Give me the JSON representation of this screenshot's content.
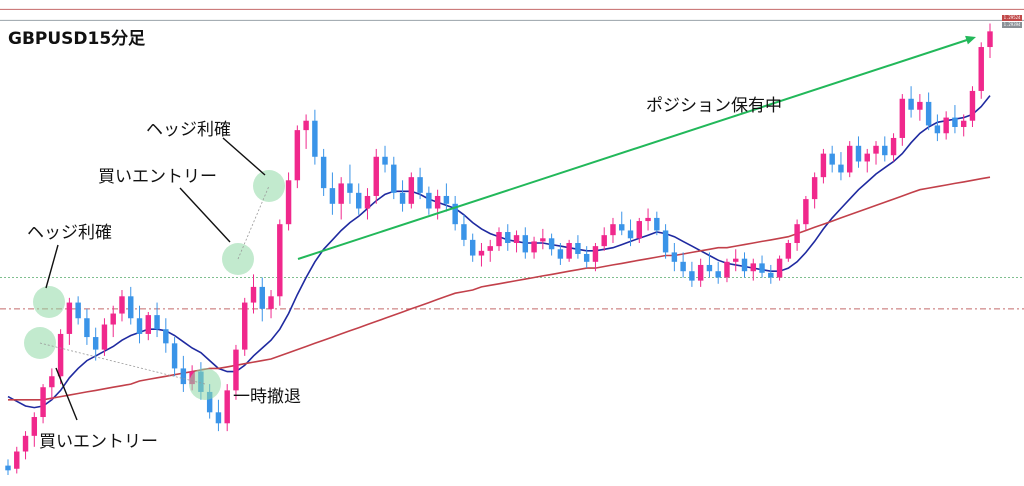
{
  "title": "GBPUSD15分足",
  "annotations": {
    "hedge_profit_1": "ヘッジ利確",
    "buy_entry_1": "買いエントリー",
    "hedge_profit_2": "ヘッジ利確",
    "buy_entry_2": "買いエントリー",
    "temp_retreat": "一時撤退",
    "position_hold": "ポジション保有中"
  },
  "price_tags": {
    "upper": "1.29524",
    "lower": "1.29394"
  },
  "colors": {
    "bull": "#f0288c",
    "bear": "#3a94e8",
    "ma_fast": "#1f2aa0",
    "ma_slow": "#c2404a",
    "trend_arrow": "#22b85a",
    "highlight": "#8fd8a6",
    "hline_green": "#7fbf8f",
    "hline_red": "#c46a6a"
  },
  "chart_data": {
    "type": "candlestick",
    "symbol": "GBPUSD",
    "timeframe": "15分足",
    "candles": [
      [
        1.2748,
        1.2752,
        1.2742,
        1.2745
      ],
      [
        1.2746,
        1.276,
        1.2743,
        1.2757
      ],
      [
        1.2757,
        1.277,
        1.2752,
        1.2767
      ],
      [
        1.2767,
        1.2782,
        1.276,
        1.2779
      ],
      [
        1.2779,
        1.28,
        1.2775,
        1.2798
      ],
      [
        1.2798,
        1.281,
        1.279,
        1.2805
      ],
      [
        1.2805,
        1.2835,
        1.28,
        1.2832
      ],
      [
        1.2832,
        1.2855,
        1.2825,
        1.2852
      ],
      [
        1.2852,
        1.2856,
        1.2838,
        1.2842
      ],
      [
        1.2842,
        1.2848,
        1.2825,
        1.283
      ],
      [
        1.283,
        1.2836,
        1.2815,
        1.2822
      ],
      [
        1.2822,
        1.2842,
        1.2818,
        1.2838
      ],
      [
        1.2838,
        1.285,
        1.283,
        1.2845
      ],
      [
        1.2845,
        1.286,
        1.284,
        1.2856
      ],
      [
        1.2856,
        1.2862,
        1.2838,
        1.2842
      ],
      [
        1.2842,
        1.285,
        1.2826,
        1.2832
      ],
      [
        1.2832,
        1.2846,
        1.2828,
        1.2844
      ],
      [
        1.2844,
        1.2852,
        1.283,
        1.2835
      ],
      [
        1.2835,
        1.2842,
        1.282,
        1.2826
      ],
      [
        1.2826,
        1.283,
        1.2805,
        1.281
      ],
      [
        1.281,
        1.2818,
        1.2795,
        1.28
      ],
      [
        1.28,
        1.2812,
        1.2796,
        1.2808
      ],
      [
        1.2808,
        1.2814,
        1.279,
        1.2795
      ],
      [
        1.2795,
        1.28,
        1.2778,
        1.2782
      ],
      [
        1.2782,
        1.279,
        1.277,
        1.2775
      ],
      [
        1.2775,
        1.28,
        1.277,
        1.2796
      ],
      [
        1.2796,
        1.2825,
        1.279,
        1.2822
      ],
      [
        1.2822,
        1.2855,
        1.2818,
        1.2852
      ],
      [
        1.2852,
        1.287,
        1.2845,
        1.2862
      ],
      [
        1.2862,
        1.2868,
        1.284,
        1.2848
      ],
      [
        1.2848,
        1.286,
        1.2842,
        1.2856
      ],
      [
        1.2856,
        1.2905,
        1.285,
        1.2902
      ],
      [
        1.2902,
        1.2935,
        1.2898,
        1.293
      ],
      [
        1.293,
        1.2965,
        1.2925,
        1.2962
      ],
      [
        1.2962,
        1.2972,
        1.295,
        1.2968
      ],
      [
        1.2968,
        1.2975,
        1.294,
        1.2945
      ],
      [
        1.2945,
        1.295,
        1.292,
        1.2925
      ],
      [
        1.2925,
        1.2935,
        1.2908,
        1.2915
      ],
      [
        1.2915,
        1.2932,
        1.2905,
        1.2928
      ],
      [
        1.2928,
        1.294,
        1.2915,
        1.2922
      ],
      [
        1.2922,
        1.2928,
        1.2908,
        1.2912
      ],
      [
        1.2912,
        1.2925,
        1.2905,
        1.292
      ],
      [
        1.292,
        1.295,
        1.2915,
        1.2945
      ],
      [
        1.2945,
        1.2952,
        1.2935,
        1.294
      ],
      [
        1.294,
        1.2945,
        1.2918,
        1.2922
      ],
      [
        1.2922,
        1.293,
        1.291,
        1.2915
      ],
      [
        1.2915,
        1.2935,
        1.2912,
        1.2932
      ],
      [
        1.2932,
        1.2938,
        1.2918,
        1.2922
      ],
      [
        1.2922,
        1.2926,
        1.2908,
        1.2912
      ],
      [
        1.2912,
        1.2924,
        1.2905,
        1.292
      ],
      [
        1.292,
        1.2928,
        1.291,
        1.2915
      ],
      [
        1.2915,
        1.292,
        1.2898,
        1.2902
      ],
      [
        1.2902,
        1.2908,
        1.2888,
        1.2892
      ],
      [
        1.2892,
        1.2896,
        1.2878,
        1.2882
      ],
      [
        1.2882,
        1.289,
        1.2875,
        1.2885
      ],
      [
        1.2885,
        1.2892,
        1.2878,
        1.2888
      ],
      [
        1.2888,
        1.29,
        1.2885,
        1.2897
      ],
      [
        1.2897,
        1.2902,
        1.2885,
        1.289
      ],
      [
        1.289,
        1.2898,
        1.2884,
        1.2895
      ],
      [
        1.2895,
        1.29,
        1.288,
        1.2884
      ],
      [
        1.2884,
        1.2894,
        1.288,
        1.2891
      ],
      [
        1.2891,
        1.2899,
        1.2886,
        1.2893
      ],
      [
        1.2893,
        1.2896,
        1.2882,
        1.2886
      ],
      [
        1.2886,
        1.289,
        1.2876,
        1.288
      ],
      [
        1.288,
        1.2892,
        1.2878,
        1.289
      ],
      [
        1.289,
        1.2895,
        1.288,
        1.2883
      ],
      [
        1.2883,
        1.2888,
        1.2874,
        1.2878
      ],
      [
        1.2878,
        1.289,
        1.2872,
        1.2888
      ],
      [
        1.2888,
        1.29,
        1.2885,
        1.2895
      ],
      [
        1.2895,
        1.2906,
        1.289,
        1.2902
      ],
      [
        1.2902,
        1.291,
        1.2895,
        1.2898
      ],
      [
        1.2898,
        1.2905,
        1.2888,
        1.2893
      ],
      [
        1.2893,
        1.2906,
        1.289,
        1.2904
      ],
      [
        1.2904,
        1.2912,
        1.2898,
        1.2906
      ],
      [
        1.2906,
        1.291,
        1.2895,
        1.2898
      ],
      [
        1.2898,
        1.2902,
        1.288,
        1.2884
      ],
      [
        1.2884,
        1.289,
        1.2872,
        1.2878
      ],
      [
        1.2878,
        1.2884,
        1.2868,
        1.2872
      ],
      [
        1.2872,
        1.2878,
        1.2862,
        1.2866
      ],
      [
        1.2866,
        1.288,
        1.2862,
        1.2876
      ],
      [
        1.2876,
        1.2884,
        1.2868,
        1.2872
      ],
      [
        1.2872,
        1.2878,
        1.2864,
        1.2868
      ],
      [
        1.2868,
        1.288,
        1.2865,
        1.2878
      ],
      [
        1.2878,
        1.2886,
        1.2872,
        1.288
      ],
      [
        1.288,
        1.2884,
        1.2868,
        1.2872
      ],
      [
        1.2872,
        1.288,
        1.2866,
        1.2877
      ],
      [
        1.2877,
        1.2882,
        1.2868,
        1.2871
      ],
      [
        1.2871,
        1.2876,
        1.2864,
        1.2868
      ],
      [
        1.2868,
        1.2882,
        1.2866,
        1.288
      ],
      [
        1.288,
        1.2892,
        1.2878,
        1.289
      ],
      [
        1.289,
        1.2905,
        1.2885,
        1.2902
      ],
      [
        1.2902,
        1.292,
        1.2898,
        1.2918
      ],
      [
        1.2918,
        1.2935,
        1.2912,
        1.2932
      ],
      [
        1.2932,
        1.295,
        1.2928,
        1.2947
      ],
      [
        1.2947,
        1.2952,
        1.2935,
        1.294
      ],
      [
        1.294,
        1.2948,
        1.293,
        1.2935
      ],
      [
        1.2935,
        1.2955,
        1.2932,
        1.2952
      ],
      [
        1.2952,
        1.2958,
        1.2938,
        1.2942
      ],
      [
        1.2942,
        1.295,
        1.2935,
        1.2947
      ],
      [
        1.2947,
        1.2955,
        1.294,
        1.2952
      ],
      [
        1.2952,
        1.2958,
        1.2942,
        1.2946
      ],
      [
        1.2946,
        1.296,
        1.2942,
        1.2957
      ],
      [
        1.2957,
        1.2985,
        1.2952,
        1.2982
      ],
      [
        1.2982,
        1.299,
        1.297,
        1.2975
      ],
      [
        1.2975,
        1.2985,
        1.2968,
        1.298
      ],
      [
        1.298,
        1.2986,
        1.2962,
        1.2965
      ],
      [
        1.2965,
        1.2972,
        1.2955,
        1.296
      ],
      [
        1.296,
        1.2974,
        1.2956,
        1.297
      ],
      [
        1.297,
        1.2978,
        1.296,
        1.2964
      ],
      [
        1.2964,
        1.2972,
        1.2958,
        1.2968
      ],
      [
        1.2968,
        1.299,
        1.2964,
        1.2987
      ],
      [
        1.2987,
        1.3018,
        1.2982,
        1.3015
      ],
      [
        1.3015,
        1.303,
        1.3008,
        1.3025
      ]
    ],
    "moving_averages": [
      {
        "name": "MA fast",
        "color": "#1f2aa0",
        "values": [
          1.2792,
          1.2789,
          1.2786,
          1.2785,
          1.2786,
          1.279,
          1.2796,
          1.2804,
          1.281,
          1.2815,
          1.2818,
          1.2821,
          1.2824,
          1.2828,
          1.2831,
          1.2833,
          1.2835,
          1.2835,
          1.2834,
          1.2831,
          1.2827,
          1.2823,
          1.282,
          1.2815,
          1.281,
          1.2808,
          1.2808,
          1.2812,
          1.2818,
          1.2823,
          1.2828,
          1.2835,
          1.2845,
          1.2857,
          1.2868,
          1.2878,
          1.2886,
          1.2892,
          1.2898,
          1.2903,
          1.2907,
          1.2912,
          1.2917,
          1.2921,
          1.2923,
          1.2923,
          1.2923,
          1.2921,
          1.2918,
          1.2916,
          1.2914,
          1.2912,
          1.2908,
          1.2903,
          1.2899,
          1.2896,
          1.2894,
          1.2892,
          1.2891,
          1.289,
          1.289,
          1.289,
          1.2889,
          1.2888,
          1.2887,
          1.2886,
          1.2885,
          1.2885,
          1.2886,
          1.2887,
          1.2889,
          1.2891,
          1.2893,
          1.2895,
          1.2897,
          1.2896,
          1.2894,
          1.2891,
          1.2888,
          1.2885,
          1.2882,
          1.2879,
          1.2877,
          1.2876,
          1.2875,
          1.2874,
          1.2873,
          1.2872,
          1.2872,
          1.2874,
          1.2878,
          1.2884,
          1.2891,
          1.2899,
          1.2906,
          1.2912,
          1.2918,
          1.2924,
          1.2929,
          1.2934,
          1.2938,
          1.2942,
          1.2947,
          1.2954,
          1.296,
          1.2964,
          1.2967,
          1.2968,
          1.2969,
          1.297,
          1.2972,
          1.2977,
          1.2984
        ]
      },
      {
        "name": "MA slow",
        "color": "#c2404a",
        "values": [
          1.279,
          1.279,
          1.279,
          1.279,
          1.279,
          1.2791,
          1.2792,
          1.2793,
          1.2794,
          1.2795,
          1.2796,
          1.2797,
          1.2798,
          1.2799,
          1.28,
          1.2802,
          1.2803,
          1.2804,
          1.2805,
          1.2806,
          1.2807,
          1.2808,
          1.2809,
          1.281,
          1.281,
          1.2811,
          1.2812,
          1.2813,
          1.2814,
          1.2815,
          1.2816,
          1.2818,
          1.282,
          1.2822,
          1.2824,
          1.2826,
          1.2828,
          1.283,
          1.2832,
          1.2834,
          1.2836,
          1.2838,
          1.284,
          1.2842,
          1.2844,
          1.2846,
          1.2848,
          1.285,
          1.2852,
          1.2854,
          1.2856,
          1.2858,
          1.2859,
          1.286,
          1.2862,
          1.2863,
          1.2864,
          1.2865,
          1.2866,
          1.2867,
          1.2868,
          1.2869,
          1.287,
          1.2871,
          1.2872,
          1.2873,
          1.2874,
          1.2874,
          1.2875,
          1.2876,
          1.2877,
          1.2878,
          1.2879,
          1.288,
          1.2881,
          1.2882,
          1.2882,
          1.2883,
          1.2884,
          1.2885,
          1.2886,
          1.2887,
          1.2887,
          1.2888,
          1.2889,
          1.289,
          1.2891,
          1.2892,
          1.2893,
          1.2894,
          1.2896,
          1.2898,
          1.29,
          1.2902,
          1.2904,
          1.2906,
          1.2908,
          1.291,
          1.2912,
          1.2914,
          1.2916,
          1.2918,
          1.292,
          1.2922,
          1.2924,
          1.2925,
          1.2926,
          1.2927,
          1.2928,
          1.2929,
          1.293,
          1.2931,
          1.2932
        ]
      }
    ],
    "ylim": [
      1.2735,
      1.3045
    ],
    "grid": false,
    "horizontal_lines": [
      {
        "price": 1.3039,
        "color": "#c46a6a",
        "style": "solid"
      },
      {
        "price": 1.3032,
        "color": "#9aa3a9",
        "style": "solid"
      },
      {
        "price": 1.2868,
        "color": "#7fbf8f",
        "style": "dotted"
      },
      {
        "price": 1.2848,
        "color": "#c46a6a",
        "style": "dashdot"
      }
    ]
  }
}
